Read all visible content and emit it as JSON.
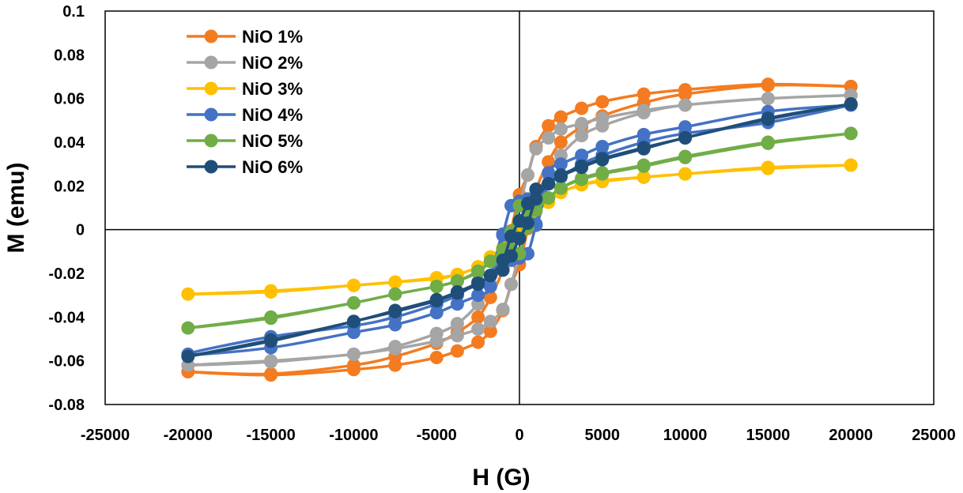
{
  "chart_data": {
    "type": "line",
    "title": "",
    "xlabel": "H (G)",
    "ylabel": "M (emu)",
    "xlim": [
      -25000,
      25000
    ],
    "ylim": [
      -0.08,
      0.1
    ],
    "xticks": [
      -25000,
      -20000,
      -15000,
      -10000,
      -5000,
      0,
      5000,
      10000,
      15000,
      20000,
      25000
    ],
    "yticks": [
      -0.08,
      -0.06,
      -0.04,
      -0.02,
      0,
      0.02,
      0.04,
      0.06,
      0.08,
      0.1
    ],
    "xtick_labels": [
      "-25000",
      "-20000",
      "-15000",
      "-10000",
      "-5000",
      "0",
      "5000",
      "10000",
      "15000",
      "20000",
      "25000"
    ],
    "ytick_labels": [
      "-0.08",
      "-0.06",
      "-0.04",
      "-0.02",
      "0",
      "0.02",
      "0.04",
      "0.06",
      "0.08",
      "0.1"
    ],
    "grid": false,
    "legend_position": "top-left",
    "series": [
      {
        "name": "NiO 1%",
        "color": "#F47B20",
        "x": [
          20000,
          15000,
          10000,
          7500,
          5000,
          3750,
          2500,
          1750,
          1000,
          500,
          0,
          -500,
          -1000,
          -1750,
          -2500,
          -3750,
          -5000,
          -7500,
          -10000,
          -15000,
          -20000,
          -15000,
          -10000,
          -7500,
          -5000,
          -3750,
          -2500,
          -1750,
          -1000,
          -500,
          0,
          500,
          1000,
          1750,
          2500,
          3750,
          5000,
          7500,
          10000,
          15000,
          20000
        ],
        "y": [
          0.0655,
          0.0665,
          0.064,
          0.062,
          0.0585,
          0.0555,
          0.0515,
          0.0475,
          0.038,
          0.025,
          0.016,
          -0.0005,
          -0.018,
          -0.031,
          -0.04,
          -0.047,
          -0.052,
          -0.058,
          -0.062,
          -0.066,
          -0.065,
          -0.0665,
          -0.064,
          -0.062,
          -0.0585,
          -0.0555,
          -0.0515,
          -0.0465,
          -0.037,
          -0.025,
          -0.016,
          0.0005,
          0.018,
          0.031,
          0.04,
          0.047,
          0.052,
          0.058,
          0.062,
          0.066,
          0.0655
        ]
      },
      {
        "name": "NiO 2%",
        "color": "#A5A5A5",
        "x": [
          20000,
          15000,
          10000,
          7500,
          5000,
          3750,
          2500,
          1750,
          1000,
          500,
          0,
          -500,
          -1000,
          -1750,
          -2500,
          -3750,
          -5000,
          -7500,
          -10000,
          -15000,
          -20000,
          -15000,
          -10000,
          -7500,
          -5000,
          -3750,
          -2500,
          -1750,
          -1000,
          -500,
          0,
          500,
          1000,
          1750,
          2500,
          3750,
          5000,
          7500,
          10000,
          15000,
          20000
        ],
        "y": [
          0.0615,
          0.06,
          0.057,
          0.0545,
          0.051,
          0.0485,
          0.046,
          0.042,
          0.037,
          0.025,
          0.011,
          -0.004,
          -0.016,
          -0.025,
          -0.034,
          -0.043,
          -0.0475,
          -0.0535,
          -0.057,
          -0.06,
          -0.062,
          -0.0605,
          -0.057,
          -0.0545,
          -0.051,
          -0.0485,
          -0.0455,
          -0.042,
          -0.0365,
          -0.025,
          -0.011,
          0.004,
          0.016,
          0.025,
          0.034,
          0.043,
          0.0475,
          0.0535,
          0.057,
          0.06,
          0.0615
        ]
      },
      {
        "name": "NiO 3%",
        "color": "#FFC000",
        "x": [
          20000,
          15000,
          10000,
          7500,
          5000,
          3750,
          2500,
          1750,
          1000,
          500,
          0,
          -500,
          -1000,
          -1750,
          -2500,
          -3750,
          -5000,
          -7500,
          -10000,
          -15000,
          -20000,
          -15000,
          -10000,
          -7500,
          -5000,
          -3750,
          -2500,
          -1750,
          -1000,
          -500,
          0,
          500,
          1000,
          1750,
          2500,
          3750,
          5000,
          7500,
          10000,
          15000,
          20000
        ],
        "y": [
          0.0295,
          0.0285,
          0.0255,
          0.024,
          0.0225,
          0.0205,
          0.017,
          0.0125,
          0.0085,
          0.003,
          0.0005,
          -0.0025,
          -0.0085,
          -0.0125,
          -0.017,
          -0.0205,
          -0.022,
          -0.024,
          -0.0255,
          -0.028,
          -0.0295,
          -0.0285,
          -0.0255,
          -0.024,
          -0.0225,
          -0.0205,
          -0.017,
          -0.0125,
          -0.0085,
          -0.003,
          -0.0005,
          0.0025,
          0.0085,
          0.0125,
          0.017,
          0.0205,
          0.022,
          0.024,
          0.0255,
          0.028,
          0.0295
        ]
      },
      {
        "name": "NiO 4%",
        "color": "#4472C4",
        "x": [
          20000,
          15000,
          10000,
          7500,
          5000,
          3750,
          2500,
          1750,
          1000,
          500,
          0,
          -500,
          -1000,
          -1750,
          -2500,
          -3750,
          -5000,
          -7500,
          -10000,
          -15000,
          -20000,
          -15000,
          -10000,
          -7500,
          -5000,
          -3750,
          -2500,
          -1750,
          -1000,
          -500,
          0,
          500,
          1000,
          1750,
          2500,
          3750,
          5000,
          7500,
          10000,
          15000,
          20000
        ],
        "y": [
          0.057,
          0.054,
          0.047,
          0.0435,
          0.038,
          0.034,
          0.03,
          0.026,
          0.0025,
          -0.011,
          -0.013,
          -0.014,
          -0.002,
          -0.021,
          -0.024,
          -0.03,
          -0.034,
          -0.04,
          -0.044,
          -0.049,
          -0.057,
          -0.054,
          -0.047,
          -0.0435,
          -0.038,
          -0.034,
          -0.03,
          -0.026,
          -0.0025,
          0.011,
          0.013,
          0.014,
          0.002,
          0.021,
          0.024,
          0.03,
          0.034,
          0.04,
          0.044,
          0.049,
          0.057
        ]
      },
      {
        "name": "NiO 5%",
        "color": "#70AD47",
        "x": [
          20000,
          15000,
          10000,
          7500,
          5000,
          3750,
          2500,
          1750,
          1000,
          500,
          0,
          -500,
          -1000,
          -1750,
          -2500,
          -3750,
          -5000,
          -7500,
          -10000,
          -15000,
          -20000,
          -15000,
          -10000,
          -7500,
          -5000,
          -3750,
          -2500,
          -1750,
          -1000,
          -500,
          0,
          500,
          1000,
          1750,
          2500,
          3750,
          5000,
          7500,
          10000,
          15000,
          20000
        ],
        "y": [
          0.044,
          0.0395,
          0.033,
          0.029,
          0.0255,
          0.023,
          0.019,
          0.0145,
          0.009,
          0.001,
          -0.011,
          -0.009,
          -0.009,
          -0.0145,
          -0.019,
          -0.0235,
          -0.026,
          -0.0295,
          -0.0335,
          -0.04,
          -0.045,
          -0.0405,
          -0.0335,
          -0.0295,
          -0.026,
          -0.0235,
          -0.0195,
          -0.0145,
          -0.009,
          -0.001,
          0.011,
          0.009,
          0.009,
          0.0145,
          0.019,
          0.0235,
          0.026,
          0.0295,
          0.0335,
          0.04,
          0.044
        ]
      },
      {
        "name": "NiO 6%",
        "color": "#1F4E79",
        "x": [
          20000,
          15000,
          10000,
          7500,
          5000,
          3750,
          2500,
          1750,
          1000,
          500,
          0,
          -500,
          -1000,
          -1750,
          -2500,
          -3750,
          -5000,
          -7500,
          -10000,
          -15000,
          -20000,
          -15000,
          -10000,
          -7500,
          -5000,
          -3750,
          -2500,
          -1750,
          -1000,
          -500,
          0,
          500,
          1000,
          1750,
          2500,
          3750,
          5000,
          7500,
          10000,
          15000,
          20000
        ],
        "y": [
          0.0575,
          0.0505,
          0.042,
          0.037,
          0.032,
          0.0285,
          0.0245,
          0.021,
          0.014,
          0.003,
          -0.004,
          -0.012,
          -0.0185,
          -0.021,
          -0.025,
          -0.029,
          -0.0325,
          -0.0375,
          -0.042,
          -0.051,
          -0.058,
          -0.0505,
          -0.042,
          -0.037,
          -0.032,
          -0.0285,
          -0.0245,
          -0.021,
          -0.014,
          -0.003,
          0.004,
          0.012,
          0.0185,
          0.021,
          0.025,
          0.029,
          0.0325,
          0.0375,
          0.042,
          0.051,
          0.0575
        ]
      }
    ]
  }
}
